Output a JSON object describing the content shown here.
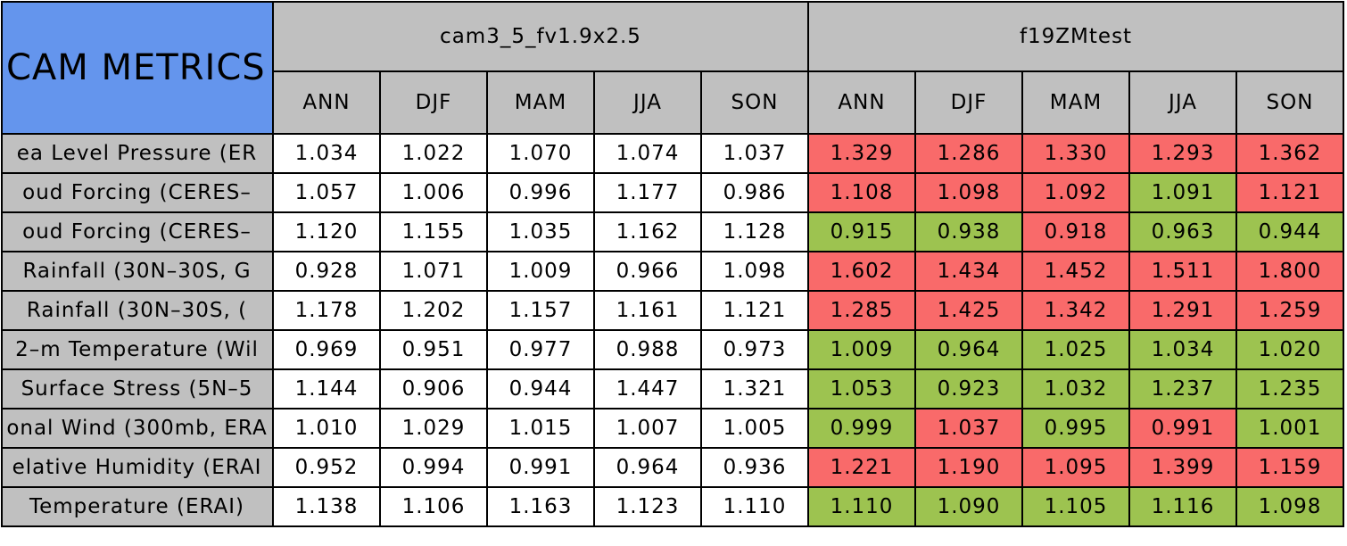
{
  "header": {
    "title": "CAM METRICS",
    "groups": [
      {
        "name": "cam3_5_fv1.9x2.5",
        "columns": [
          "ANN",
          "DJF",
          "MAM",
          "JJA",
          "SON"
        ]
      },
      {
        "name": "f19ZMtest",
        "columns": [
          "ANN",
          "DJF",
          "MAM",
          "JJA",
          "SON"
        ]
      }
    ]
  },
  "table": {
    "rows": [
      {
        "label": "ea Level Pressure (ER",
        "cells": [
          "1.034",
          "1.022",
          "1.070",
          "1.074",
          "1.037",
          "1.329",
          "1.286",
          "1.330",
          "1.293",
          "1.362"
        ],
        "colors": [
          "#ffffff",
          "#ffffff",
          "#ffffff",
          "#ffffff",
          "#ffffff",
          "#f96a6a",
          "#f96a6a",
          "#f96a6a",
          "#f96a6a",
          "#f96a6a"
        ]
      },
      {
        "label": "oud Forcing (CERES–",
        "cells": [
          "1.057",
          "1.006",
          "0.996",
          "1.177",
          "0.986",
          "1.108",
          "1.098",
          "1.092",
          "1.091",
          "1.121"
        ],
        "colors": [
          "#ffffff",
          "#ffffff",
          "#ffffff",
          "#ffffff",
          "#ffffff",
          "#f96a6a",
          "#f96a6a",
          "#f96a6a",
          "#9dc350",
          "#f96a6a"
        ]
      },
      {
        "label": "oud Forcing (CERES–",
        "cells": [
          "1.120",
          "1.155",
          "1.035",
          "1.162",
          "1.128",
          "0.915",
          "0.938",
          "0.918",
          "0.963",
          "0.944"
        ],
        "colors": [
          "#ffffff",
          "#ffffff",
          "#ffffff",
          "#ffffff",
          "#ffffff",
          "#9dc350",
          "#9dc350",
          "#f96a6a",
          "#9dc350",
          "#9dc350"
        ]
      },
      {
        "label": "Rainfall (30N–30S, G",
        "cells": [
          "0.928",
          "1.071",
          "1.009",
          "0.966",
          "1.098",
          "1.602",
          "1.434",
          "1.452",
          "1.511",
          "1.800"
        ],
        "colors": [
          "#ffffff",
          "#ffffff",
          "#ffffff",
          "#ffffff",
          "#ffffff",
          "#f96a6a",
          "#f96a6a",
          "#f96a6a",
          "#f96a6a",
          "#f96a6a"
        ]
      },
      {
        "label": "Rainfall (30N–30S, (",
        "cells": [
          "1.178",
          "1.202",
          "1.157",
          "1.161",
          "1.121",
          "1.285",
          "1.425",
          "1.342",
          "1.291",
          "1.259"
        ],
        "colors": [
          "#ffffff",
          "#ffffff",
          "#ffffff",
          "#ffffff",
          "#ffffff",
          "#f96a6a",
          "#f96a6a",
          "#f96a6a",
          "#f96a6a",
          "#f96a6a"
        ]
      },
      {
        "label": "2–m Temperature (Wil",
        "cells": [
          "0.969",
          "0.951",
          "0.977",
          "0.988",
          "0.973",
          "1.009",
          "0.964",
          "1.025",
          "1.034",
          "1.020"
        ],
        "colors": [
          "#ffffff",
          "#ffffff",
          "#ffffff",
          "#ffffff",
          "#ffffff",
          "#9dc350",
          "#9dc350",
          "#9dc350",
          "#9dc350",
          "#9dc350"
        ]
      },
      {
        "label": "Surface Stress (5N–5",
        "cells": [
          "1.144",
          "0.906",
          "0.944",
          "1.447",
          "1.321",
          "1.053",
          "0.923",
          "1.032",
          "1.237",
          "1.235"
        ],
        "colors": [
          "#ffffff",
          "#ffffff",
          "#ffffff",
          "#ffffff",
          "#ffffff",
          "#9dc350",
          "#9dc350",
          "#9dc350",
          "#9dc350",
          "#9dc350"
        ]
      },
      {
        "label": "onal Wind (300mb, ERA",
        "cells": [
          "1.010",
          "1.029",
          "1.015",
          "1.007",
          "1.005",
          "0.999",
          "1.037",
          "0.995",
          "0.991",
          "1.001"
        ],
        "colors": [
          "#ffffff",
          "#ffffff",
          "#ffffff",
          "#ffffff",
          "#ffffff",
          "#9dc350",
          "#f96a6a",
          "#9dc350",
          "#f96a6a",
          "#9dc350"
        ]
      },
      {
        "label": "elative Humidity (ERAI",
        "cells": [
          "0.952",
          "0.994",
          "0.991",
          "0.964",
          "0.936",
          "1.221",
          "1.190",
          "1.095",
          "1.399",
          "1.159"
        ],
        "colors": [
          "#ffffff",
          "#ffffff",
          "#ffffff",
          "#ffffff",
          "#ffffff",
          "#f96a6a",
          "#f96a6a",
          "#f96a6a",
          "#f96a6a",
          "#f96a6a"
        ]
      },
      {
        "label": "Temperature (ERAI)",
        "cells": [
          "1.138",
          "1.106",
          "1.163",
          "1.123",
          "1.110",
          "1.110",
          "1.090",
          "1.105",
          "1.116",
          "1.098"
        ],
        "colors": [
          "#ffffff",
          "#ffffff",
          "#ffffff",
          "#ffffff",
          "#ffffff",
          "#9dc350",
          "#9dc350",
          "#9dc350",
          "#9dc350",
          "#9dc350"
        ]
      }
    ]
  }
}
